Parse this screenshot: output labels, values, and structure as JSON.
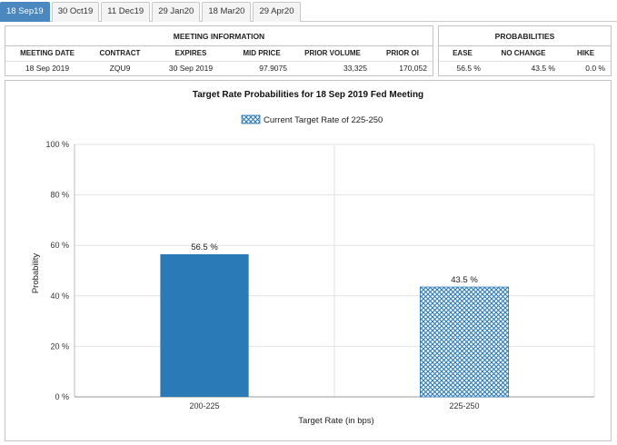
{
  "tabs": [
    "18 Sep19",
    "30 Oct19",
    "11 Dec19",
    "29 Jan20",
    "18 Mar20",
    "29 Apr20"
  ],
  "active_tab": 0,
  "meeting_info": {
    "title": "MEETING INFORMATION",
    "headers": [
      "MEETING DATE",
      "CONTRACT",
      "EXPIRES",
      "MID PRICE",
      "PRIOR VOLUME",
      "PRIOR OI"
    ],
    "values": [
      "18 Sep 2019",
      "ZQU9",
      "30 Sep 2019",
      "97.9075",
      "33,325",
      "170,052"
    ]
  },
  "probabilities": {
    "title": "PROBABILITIES",
    "headers": [
      "EASE",
      "NO CHANGE",
      "HIKE"
    ],
    "values": [
      "56.5 %",
      "43.5 %",
      "0.0 %"
    ]
  },
  "colors": {
    "tab_active": "#4b88c0",
    "bar_solid": "#2a7ab7",
    "bar_hatch": "#2a7ab7"
  },
  "chart_data": {
    "type": "bar",
    "title": "Target Rate Probabilities for 18 Sep 2019 Fed Meeting",
    "legend": "Current Target Rate of 225-250",
    "legend_position": "top-center",
    "categories": [
      "200-225",
      "225-250"
    ],
    "values": [
      56.5,
      43.5
    ],
    "value_labels": [
      "56.5 %",
      "43.5 %"
    ],
    "bar_styles": [
      "solid",
      "hatched"
    ],
    "xlabel": "Target Rate (in bps)",
    "ylabel": "Probability",
    "ylim": [
      0,
      100
    ],
    "yticks": [
      0,
      20,
      40,
      60,
      80,
      100
    ],
    "ytick_labels": [
      "0 %",
      "20 %",
      "40 %",
      "60 %",
      "80 %",
      "100 %"
    ],
    "grid": true
  }
}
